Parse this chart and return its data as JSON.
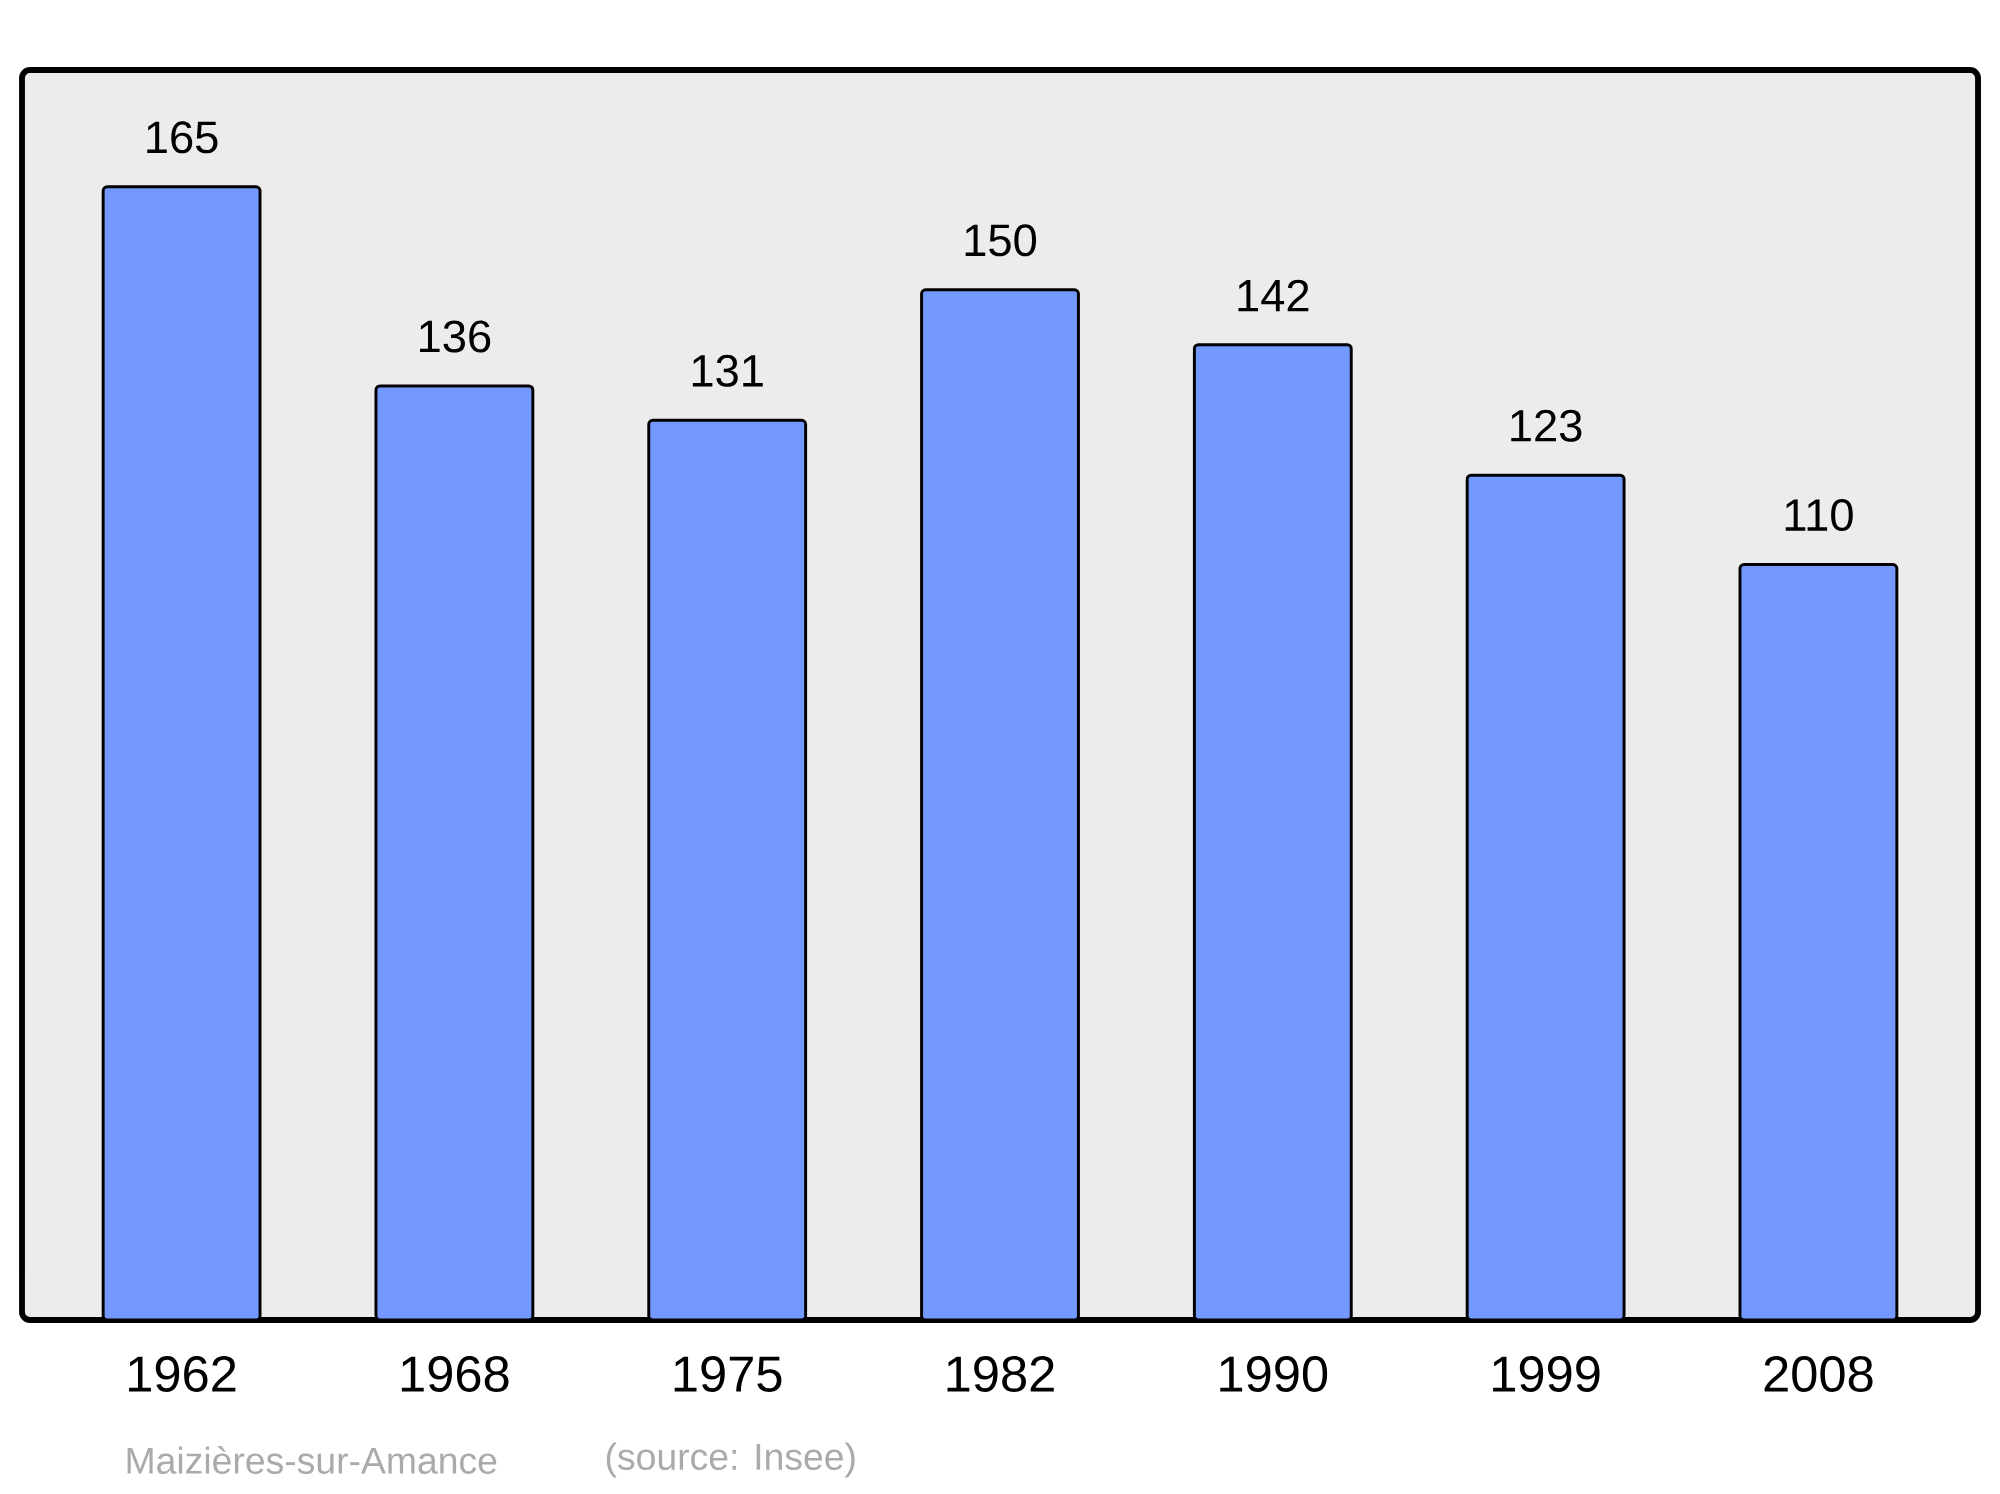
{
  "chart_data": {
    "type": "bar",
    "categories": [
      "1962",
      "1968",
      "1975",
      "1982",
      "1990",
      "1999",
      "2008"
    ],
    "values": [
      165,
      136,
      131,
      150,
      142,
      123,
      110
    ],
    "color": "#7399ff",
    "ylim": [
      0,
      182
    ],
    "data_labels": true,
    "annotations": [
      "Maizières-sur-Amance",
      "(source: Insee)"
    ]
  }
}
